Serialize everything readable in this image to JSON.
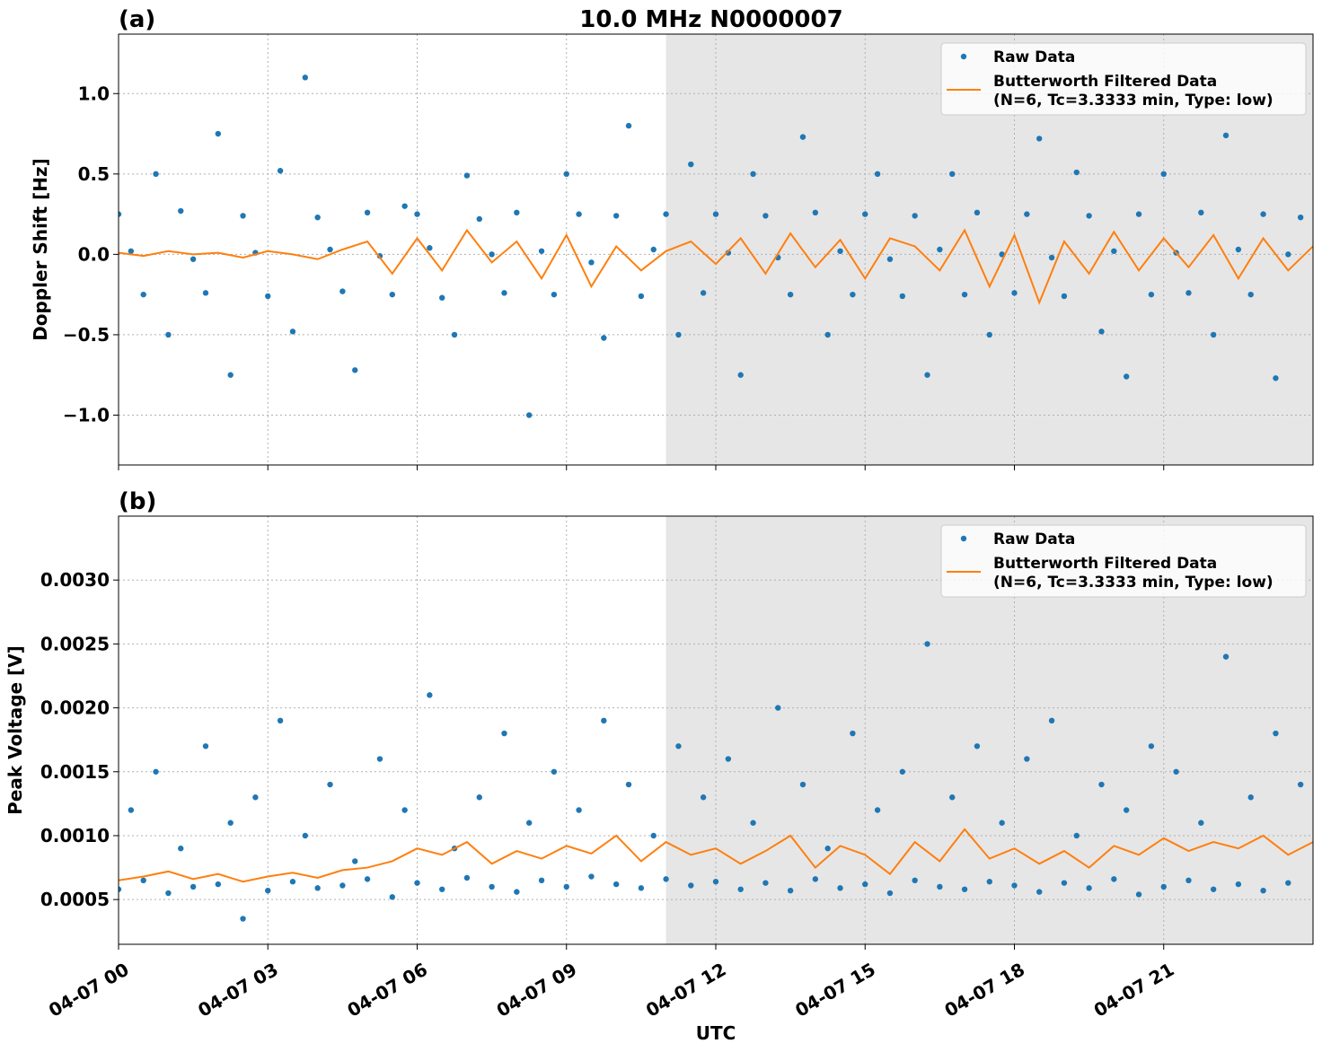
{
  "title": "10.0 MHz N0000007",
  "colors": {
    "raw": "#1f77b4",
    "filtered": "#ff7f0e",
    "shade": "#e6e6e6",
    "grid": "#b0b0b0"
  },
  "chart_data": [
    {
      "type": "scatter+line",
      "panel_label": "(a)",
      "ylabel": "Doppler Shift [Hz]",
      "xlabel": "",
      "date": "04-07",
      "xlim": [
        "00:00",
        "24:00"
      ],
      "ylim": [
        -1.31,
        1.37
      ],
      "yticks": [
        {
          "v": 1.0,
          "label": "1.0"
        },
        {
          "v": 0.5,
          "label": "0.5"
        },
        {
          "v": 0.0,
          "label": "0.0"
        },
        {
          "v": -0.5,
          "label": "−0.5"
        },
        {
          "v": -1.0,
          "label": "−1.0"
        }
      ],
      "xticks": [
        {
          "t": "00:00",
          "label": "04-07 00"
        },
        {
          "t": "03:00",
          "label": "04-07 03"
        },
        {
          "t": "06:00",
          "label": "04-07 06"
        },
        {
          "t": "09:00",
          "label": "04-07 09"
        },
        {
          "t": "12:00",
          "label": "04-07 12"
        },
        {
          "t": "15:00",
          "label": "04-07 15"
        },
        {
          "t": "18:00",
          "label": "04-07 18"
        },
        {
          "t": "21:00",
          "label": "04-07 21"
        }
      ],
      "grid": true,
      "shaded_interval": [
        "11:00",
        "24:00"
      ],
      "legend": {
        "placement": "top-right",
        "entries": [
          "Raw Data",
          "Butterworth Filtered Data",
          "(N=6, Tc=3.3333 min, Type: low)"
        ]
      },
      "series": [
        {
          "name": "Raw Data",
          "kind": "scatter",
          "x": [
            "00:00",
            "00:15",
            "00:30",
            "00:45",
            "01:00",
            "01:15",
            "01:30",
            "01:45",
            "02:00",
            "02:15",
            "02:30",
            "02:45",
            "03:00",
            "03:15",
            "03:30",
            "03:45",
            "04:00",
            "04:15",
            "04:30",
            "04:45",
            "05:00",
            "05:15",
            "05:30",
            "05:45",
            "06:00",
            "06:15",
            "06:30",
            "06:45",
            "07:00",
            "07:15",
            "07:30",
            "07:45",
            "08:00",
            "08:15",
            "08:30",
            "08:45",
            "09:00",
            "09:15",
            "09:30",
            "09:45",
            "10:00",
            "10:15",
            "10:30",
            "10:45",
            "11:00",
            "11:15",
            "11:30",
            "11:45",
            "12:00",
            "12:15",
            "12:30",
            "12:45",
            "13:00",
            "13:15",
            "13:30",
            "13:45",
            "14:00",
            "14:15",
            "14:30",
            "14:45",
            "15:00",
            "15:15",
            "15:30",
            "15:45",
            "16:00",
            "16:15",
            "16:30",
            "16:45",
            "17:00",
            "17:15",
            "17:30",
            "17:45",
            "18:00",
            "18:15",
            "18:30",
            "18:45",
            "19:00",
            "19:15",
            "19:30",
            "19:45",
            "20:00",
            "20:15",
            "20:30",
            "20:45",
            "21:00",
            "21:15",
            "21:30",
            "21:45",
            "22:00",
            "22:15",
            "22:30",
            "22:45",
            "23:00",
            "23:15",
            "23:30",
            "23:45"
          ],
          "y": [
            0.25,
            0.02,
            -0.25,
            0.5,
            -0.5,
            0.27,
            -0.03,
            -0.24,
            0.75,
            -0.75,
            0.24,
            0.01,
            -0.26,
            0.52,
            -0.48,
            1.1,
            0.23,
            0.03,
            -0.23,
            -0.72,
            0.26,
            -0.01,
            -0.25,
            0.3,
            0.25,
            0.04,
            -0.27,
            -0.5,
            0.49,
            0.22,
            0.0,
            -0.24,
            0.26,
            -1.0,
            0.02,
            -0.25,
            0.5,
            0.25,
            -0.05,
            -0.52,
            0.24,
            0.8,
            -0.26,
            0.03,
            0.25,
            -0.5,
            0.56,
            -0.24,
            0.25,
            0.01,
            -0.75,
            0.5,
            0.24,
            -0.02,
            -0.25,
            0.73,
            0.26,
            -0.5,
            0.02,
            -0.25,
            0.25,
            0.5,
            -0.03,
            -0.26,
            0.24,
            -0.75,
            0.03,
            0.5,
            -0.25,
            0.26,
            -0.5,
            0.0,
            -0.24,
            0.25,
            0.72,
            -0.02,
            -0.26,
            0.51,
            0.24,
            -0.48,
            0.02,
            -0.76,
            0.25,
            -0.25,
            0.5,
            0.01,
            -0.24,
            0.26,
            -0.5,
            0.74,
            0.03,
            -0.25,
            0.25,
            -0.77,
            0.0,
            0.23
          ]
        },
        {
          "name": "Butterworth Filtered Data",
          "kind": "line",
          "x": [
            "00:00",
            "00:30",
            "01:00",
            "01:30",
            "02:00",
            "02:30",
            "03:00",
            "03:30",
            "04:00",
            "04:30",
            "05:00",
            "05:30",
            "06:00",
            "06:30",
            "07:00",
            "07:30",
            "08:00",
            "08:30",
            "09:00",
            "09:30",
            "10:00",
            "10:30",
            "11:00",
            "11:30",
            "12:00",
            "12:30",
            "13:00",
            "13:30",
            "14:00",
            "14:30",
            "15:00",
            "15:30",
            "16:00",
            "16:30",
            "17:00",
            "17:30",
            "18:00",
            "18:30",
            "19:00",
            "19:30",
            "20:00",
            "20:30",
            "21:00",
            "21:30",
            "22:00",
            "22:30",
            "23:00",
            "23:30",
            "24:00"
          ],
          "y": [
            0.01,
            -0.01,
            0.02,
            0.0,
            0.01,
            -0.02,
            0.02,
            0.0,
            -0.03,
            0.03,
            0.08,
            -0.12,
            0.1,
            -0.1,
            0.15,
            -0.05,
            0.08,
            -0.15,
            0.12,
            -0.2,
            0.05,
            -0.1,
            0.02,
            0.08,
            -0.06,
            0.1,
            -0.12,
            0.13,
            -0.08,
            0.09,
            -0.15,
            0.1,
            0.05,
            -0.1,
            0.15,
            -0.2,
            0.12,
            -0.3,
            0.08,
            -0.12,
            0.14,
            -0.1,
            0.1,
            -0.08,
            0.12,
            -0.15,
            0.1,
            -0.1,
            0.05
          ]
        }
      ]
    },
    {
      "type": "scatter+line",
      "panel_label": "(b)",
      "ylabel": "Peak Voltage [V]",
      "xlabel": "UTC",
      "date": "04-07",
      "xlim": [
        "00:00",
        "24:00"
      ],
      "ylim": [
        0.00015,
        0.0035
      ],
      "yticks": [
        {
          "v": 0.003,
          "label": "0.0030"
        },
        {
          "v": 0.0025,
          "label": "0.0025"
        },
        {
          "v": 0.002,
          "label": "0.0020"
        },
        {
          "v": 0.0015,
          "label": "0.0015"
        },
        {
          "v": 0.001,
          "label": "0.0010"
        },
        {
          "v": 0.0005,
          "label": "0.0005"
        }
      ],
      "xticks": [
        {
          "t": "00:00",
          "label": "04-07 00"
        },
        {
          "t": "03:00",
          "label": "04-07 03"
        },
        {
          "t": "06:00",
          "label": "04-07 06"
        },
        {
          "t": "09:00",
          "label": "04-07 09"
        },
        {
          "t": "12:00",
          "label": "04-07 12"
        },
        {
          "t": "15:00",
          "label": "04-07 15"
        },
        {
          "t": "18:00",
          "label": "04-07 18"
        },
        {
          "t": "21:00",
          "label": "04-07 21"
        }
      ],
      "grid": true,
      "shaded_interval": [
        "11:00",
        "24:00"
      ],
      "legend": {
        "placement": "top-right",
        "entries": [
          "Raw Data",
          "Butterworth Filtered Data",
          "(N=6, Tc=3.3333 min, Type: low)"
        ]
      },
      "series": [
        {
          "name": "Raw Data",
          "kind": "scatter",
          "x": [
            "00:00",
            "00:15",
            "00:30",
            "00:45",
            "01:00",
            "01:15",
            "01:30",
            "01:45",
            "02:00",
            "02:15",
            "02:30",
            "02:45",
            "03:00",
            "03:15",
            "03:30",
            "03:45",
            "04:00",
            "04:15",
            "04:30",
            "04:45",
            "05:00",
            "05:15",
            "05:30",
            "05:45",
            "06:00",
            "06:15",
            "06:30",
            "06:45",
            "07:00",
            "07:15",
            "07:30",
            "07:45",
            "08:00",
            "08:15",
            "08:30",
            "08:45",
            "09:00",
            "09:15",
            "09:30",
            "09:45",
            "10:00",
            "10:15",
            "10:30",
            "10:45",
            "11:00",
            "11:15",
            "11:30",
            "11:45",
            "12:00",
            "12:15",
            "12:30",
            "12:45",
            "13:00",
            "13:15",
            "13:30",
            "13:45",
            "14:00",
            "14:15",
            "14:30",
            "14:45",
            "15:00",
            "15:15",
            "15:30",
            "15:45",
            "16:00",
            "16:15",
            "16:30",
            "16:45",
            "17:00",
            "17:15",
            "17:30",
            "17:45",
            "18:00",
            "18:15",
            "18:30",
            "18:45",
            "19:00",
            "19:15",
            "19:30",
            "19:45",
            "20:00",
            "20:15",
            "20:30",
            "20:45",
            "21:00",
            "21:15",
            "21:30",
            "21:45",
            "22:00",
            "22:15",
            "22:30",
            "22:45",
            "23:00",
            "23:15",
            "23:30",
            "23:45"
          ],
          "y": [
            0.00058,
            0.0012,
            0.00065,
            0.0015,
            0.00055,
            0.0009,
            0.0006,
            0.0017,
            0.00062,
            0.0011,
            0.00035,
            0.0013,
            0.00057,
            0.0019,
            0.00064,
            0.001,
            0.00059,
            0.0014,
            0.00061,
            0.0008,
            0.00066,
            0.0016,
            0.00052,
            0.0012,
            0.00063,
            0.0021,
            0.00058,
            0.0009,
            0.00067,
            0.0013,
            0.0006,
            0.0018,
            0.00056,
            0.0011,
            0.00065,
            0.0015,
            0.0006,
            0.0012,
            0.00068,
            0.0019,
            0.00062,
            0.0014,
            0.00059,
            0.001,
            0.00066,
            0.0017,
            0.00061,
            0.0013,
            0.00064,
            0.0016,
            0.00058,
            0.0011,
            0.00063,
            0.002,
            0.00057,
            0.0014,
            0.00066,
            0.0009,
            0.00059,
            0.0018,
            0.00062,
            0.0012,
            0.00055,
            0.0015,
            0.00065,
            0.0025,
            0.0006,
            0.0013,
            0.00058,
            0.0017,
            0.00064,
            0.0011,
            0.00061,
            0.0016,
            0.00056,
            0.0019,
            0.00063,
            0.001,
            0.00059,
            0.0014,
            0.00066,
            0.0012,
            0.00054,
            0.0017,
            0.0006,
            0.0015,
            0.00065,
            0.0011,
            0.00058,
            0.0024,
            0.00062,
            0.0013,
            0.00057,
            0.0018,
            0.00063,
            0.0014
          ]
        },
        {
          "name": "Butterworth Filtered Data",
          "kind": "line",
          "x": [
            "00:00",
            "00:30",
            "01:00",
            "01:30",
            "02:00",
            "02:30",
            "03:00",
            "03:30",
            "04:00",
            "04:30",
            "05:00",
            "05:30",
            "06:00",
            "06:30",
            "07:00",
            "07:30",
            "08:00",
            "08:30",
            "09:00",
            "09:30",
            "10:00",
            "10:30",
            "11:00",
            "11:30",
            "12:00",
            "12:30",
            "13:00",
            "13:30",
            "14:00",
            "14:30",
            "15:00",
            "15:30",
            "16:00",
            "16:30",
            "17:00",
            "17:30",
            "18:00",
            "18:30",
            "19:00",
            "19:30",
            "20:00",
            "20:30",
            "21:00",
            "21:30",
            "22:00",
            "22:30",
            "23:00",
            "23:30",
            "24:00"
          ],
          "y": [
            0.00065,
            0.00068,
            0.00072,
            0.00066,
            0.0007,
            0.00064,
            0.00068,
            0.00071,
            0.00067,
            0.00073,
            0.00075,
            0.0008,
            0.0009,
            0.00085,
            0.00095,
            0.00078,
            0.00088,
            0.00082,
            0.00092,
            0.00086,
            0.001,
            0.0008,
            0.00095,
            0.00085,
            0.0009,
            0.00078,
            0.00088,
            0.001,
            0.00075,
            0.00092,
            0.00085,
            0.0007,
            0.00095,
            0.0008,
            0.00105,
            0.00082,
            0.0009,
            0.00078,
            0.00088,
            0.00075,
            0.00092,
            0.00085,
            0.00098,
            0.00088,
            0.00095,
            0.0009,
            0.001,
            0.00085,
            0.00095
          ]
        }
      ]
    }
  ]
}
